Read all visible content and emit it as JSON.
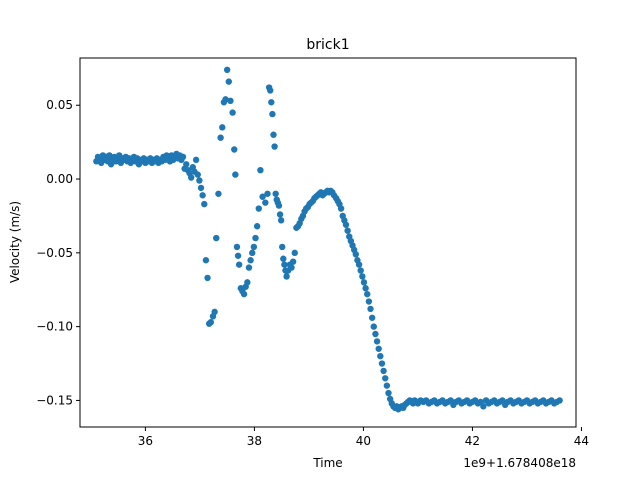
{
  "chart_data": {
    "type": "scatter",
    "title": "brick1",
    "xlabel": "Time",
    "ylabel": "Velocity (m/s)",
    "offset_text": "1e9+1.678408e18",
    "xlim": [
      34.8,
      43.9
    ],
    "ylim": [
      -0.168,
      0.082
    ],
    "xticks": [
      36,
      38,
      40,
      42,
      44
    ],
    "xtick_labels": [
      "36",
      "38",
      "40",
      "42",
      "44"
    ],
    "yticks": [
      0.05,
      0.0,
      -0.05,
      -0.1,
      -0.15
    ],
    "ytick_labels": [
      "0.05",
      "0.00",
      "−0.05",
      "−0.10",
      "−0.15"
    ],
    "grid": false,
    "legend": "none",
    "marker_color": "#1f77b4",
    "series": [
      {
        "points": [
          [
            35.1,
            0.012
          ],
          [
            35.13,
            0.015
          ],
          [
            35.16,
            0.014
          ],
          [
            35.19,
            0.011
          ],
          [
            35.22,
            0.016
          ],
          [
            35.25,
            0.013
          ],
          [
            35.28,
            0.015
          ],
          [
            35.31,
            0.012
          ],
          [
            35.34,
            0.016
          ],
          [
            35.37,
            0.01
          ],
          [
            35.4,
            0.014
          ],
          [
            35.43,
            0.015
          ],
          [
            35.46,
            0.012
          ],
          [
            35.49,
            0.013
          ],
          [
            35.52,
            0.016
          ],
          [
            35.55,
            0.011
          ],
          [
            35.58,
            0.014
          ],
          [
            35.61,
            0.013
          ],
          [
            35.64,
            0.015
          ],
          [
            35.67,
            0.012
          ],
          [
            35.7,
            0.014
          ],
          [
            35.73,
            0.011
          ],
          [
            35.76,
            0.013
          ],
          [
            35.79,
            0.015
          ],
          [
            35.82,
            0.012
          ],
          [
            35.85,
            0.014
          ],
          [
            35.88,
            0.01
          ],
          [
            35.91,
            0.013
          ],
          [
            35.94,
            0.012
          ],
          [
            35.97,
            0.014
          ],
          [
            36.0,
            0.011
          ],
          [
            36.03,
            0.013
          ],
          [
            36.06,
            0.012
          ],
          [
            36.09,
            0.014
          ],
          [
            36.12,
            0.011
          ],
          [
            36.15,
            0.013
          ],
          [
            36.18,
            0.012
          ],
          [
            36.21,
            0.014
          ],
          [
            36.24,
            0.011
          ],
          [
            36.27,
            0.013
          ],
          [
            36.3,
            0.012
          ],
          [
            36.33,
            0.015
          ],
          [
            36.36,
            0.013
          ],
          [
            36.39,
            0.016
          ],
          [
            36.42,
            0.014
          ],
          [
            36.45,
            0.012
          ],
          [
            36.48,
            0.016
          ],
          [
            36.51,
            0.013
          ],
          [
            36.54,
            0.015
          ],
          [
            36.57,
            0.017
          ],
          [
            36.6,
            0.014
          ],
          [
            36.63,
            0.016
          ],
          [
            36.66,
            0.013
          ],
          [
            36.69,
            0.015
          ],
          [
            36.72,
            0.007
          ],
          [
            36.75,
            0.01
          ],
          [
            36.78,
            0.006
          ],
          [
            36.81,
            0.004
          ],
          [
            36.84,
            0.001
          ],
          [
            36.87,
            0.008
          ],
          [
            36.9,
            0.005
          ],
          [
            36.93,
            0.013
          ],
          [
            36.96,
            0.003
          ],
          [
            36.99,
            -0.001
          ],
          [
            37.02,
            -0.006
          ],
          [
            37.05,
            -0.011
          ],
          [
            37.08,
            -0.017
          ],
          [
            37.11,
            -0.055
          ],
          [
            37.14,
            -0.067
          ],
          [
            37.17,
            -0.098
          ],
          [
            37.2,
            -0.097
          ],
          [
            37.24,
            -0.093
          ],
          [
            37.27,
            -0.09
          ],
          [
            37.3,
            -0.04
          ],
          [
            37.34,
            -0.01
          ],
          [
            37.38,
            0.028
          ],
          [
            37.41,
            0.035
          ],
          [
            37.44,
            0.052
          ],
          [
            37.47,
            0.054
          ],
          [
            37.5,
            0.074
          ],
          [
            37.53,
            0.066
          ],
          [
            37.56,
            0.053
          ],
          [
            37.6,
            0.045
          ],
          [
            37.63,
            0.02
          ],
          [
            37.65,
            0.003
          ],
          [
            37.68,
            -0.046
          ],
          [
            37.7,
            -0.052
          ],
          [
            37.72,
            -0.058
          ],
          [
            37.75,
            -0.074
          ],
          [
            37.78,
            -0.076
          ],
          [
            37.81,
            -0.078
          ],
          [
            37.84,
            -0.073
          ],
          [
            37.87,
            -0.07
          ],
          [
            37.9,
            -0.06
          ],
          [
            37.93,
            -0.055
          ],
          [
            37.96,
            -0.05
          ],
          [
            37.99,
            -0.046
          ],
          [
            38.02,
            -0.04
          ],
          [
            38.05,
            -0.032
          ],
          [
            38.08,
            -0.02
          ],
          [
            38.11,
            0.006
          ],
          [
            38.15,
            -0.012
          ],
          [
            38.2,
            -0.016
          ],
          [
            38.24,
            -0.01
          ],
          [
            38.27,
            0.062
          ],
          [
            38.29,
            0.06
          ],
          [
            38.31,
            0.052
          ],
          [
            38.33,
            0.044
          ],
          [
            38.35,
            0.03
          ],
          [
            38.37,
            0.022
          ],
          [
            38.39,
            -0.01
          ],
          [
            38.41,
            -0.014
          ],
          [
            38.43,
            -0.016
          ],
          [
            38.45,
            -0.018
          ],
          [
            38.47,
            -0.024
          ],
          [
            38.49,
            -0.028
          ],
          [
            38.51,
            -0.046
          ],
          [
            38.53,
            -0.054
          ],
          [
            38.55,
            -0.058
          ],
          [
            38.57,
            -0.062
          ],
          [
            38.59,
            -0.066
          ],
          [
            38.62,
            -0.062
          ],
          [
            38.65,
            -0.058
          ],
          [
            38.68,
            -0.06
          ],
          [
            38.71,
            -0.056
          ],
          [
            38.74,
            -0.05
          ],
          [
            38.77,
            -0.033
          ],
          [
            38.8,
            -0.032
          ],
          [
            38.83,
            -0.03
          ],
          [
            38.86,
            -0.027
          ],
          [
            38.89,
            -0.025
          ],
          [
            38.92,
            -0.022
          ],
          [
            38.95,
            -0.02
          ],
          [
            38.98,
            -0.019
          ],
          [
            39.01,
            -0.017
          ],
          [
            39.04,
            -0.016
          ],
          [
            39.07,
            -0.015
          ],
          [
            39.1,
            -0.013
          ],
          [
            39.13,
            -0.012
          ],
          [
            39.16,
            -0.011
          ],
          [
            39.19,
            -0.01
          ],
          [
            39.22,
            -0.009
          ],
          [
            39.25,
            -0.011
          ],
          [
            39.28,
            -0.01
          ],
          [
            39.31,
            -0.009
          ],
          [
            39.34,
            -0.008
          ],
          [
            39.37,
            -0.009
          ],
          [
            39.4,
            -0.008
          ],
          [
            39.43,
            -0.009
          ],
          [
            39.46,
            -0.011
          ],
          [
            39.5,
            -0.013
          ],
          [
            39.53,
            -0.015
          ],
          [
            39.56,
            -0.017
          ],
          [
            39.59,
            -0.02
          ],
          [
            39.62,
            -0.025
          ],
          [
            39.65,
            -0.028
          ],
          [
            39.68,
            -0.031
          ],
          [
            39.71,
            -0.035
          ],
          [
            39.74,
            -0.039
          ],
          [
            39.77,
            -0.042
          ],
          [
            39.8,
            -0.045
          ],
          [
            39.83,
            -0.048
          ],
          [
            39.86,
            -0.051
          ],
          [
            39.89,
            -0.055
          ],
          [
            39.92,
            -0.058
          ],
          [
            39.95,
            -0.062
          ],
          [
            39.98,
            -0.066
          ],
          [
            40.01,
            -0.07
          ],
          [
            40.04,
            -0.074
          ],
          [
            40.07,
            -0.078
          ],
          [
            40.1,
            -0.083
          ],
          [
            40.13,
            -0.088
          ],
          [
            40.16,
            -0.094
          ],
          [
            40.19,
            -0.1
          ],
          [
            40.22,
            -0.105
          ],
          [
            40.25,
            -0.11
          ],
          [
            40.28,
            -0.115
          ],
          [
            40.31,
            -0.12
          ],
          [
            40.34,
            -0.125
          ],
          [
            40.37,
            -0.13
          ],
          [
            40.4,
            -0.135
          ],
          [
            40.43,
            -0.14
          ],
          [
            40.46,
            -0.145
          ],
          [
            40.49,
            -0.149
          ],
          [
            40.52,
            -0.152
          ],
          [
            40.55,
            -0.154
          ],
          [
            40.58,
            -0.155
          ],
          [
            40.61,
            -0.154
          ],
          [
            40.64,
            -0.156
          ],
          [
            40.67,
            -0.155
          ],
          [
            40.7,
            -0.154
          ],
          [
            40.73,
            -0.155
          ],
          [
            40.76,
            -0.153
          ],
          [
            40.79,
            -0.152
          ],
          [
            40.82,
            -0.151
          ],
          [
            40.85,
            -0.15
          ],
          [
            40.88,
            -0.151
          ],
          [
            40.91,
            -0.152
          ],
          [
            40.94,
            -0.15
          ],
          [
            40.97,
            -0.151
          ],
          [
            41.0,
            -0.152
          ],
          [
            41.05,
            -0.15
          ],
          [
            41.1,
            -0.151
          ],
          [
            41.15,
            -0.15
          ],
          [
            41.2,
            -0.152
          ],
          [
            41.25,
            -0.151
          ],
          [
            41.3,
            -0.15
          ],
          [
            41.35,
            -0.152
          ],
          [
            41.4,
            -0.151
          ],
          [
            41.45,
            -0.15
          ],
          [
            41.5,
            -0.152
          ],
          [
            41.55,
            -0.151
          ],
          [
            41.6,
            -0.15
          ],
          [
            41.65,
            -0.153
          ],
          [
            41.7,
            -0.151
          ],
          [
            41.75,
            -0.15
          ],
          [
            41.8,
            -0.152
          ],
          [
            41.85,
            -0.151
          ],
          [
            41.9,
            -0.15
          ],
          [
            41.95,
            -0.152
          ],
          [
            42.0,
            -0.151
          ],
          [
            42.05,
            -0.15
          ],
          [
            42.1,
            -0.152
          ],
          [
            42.15,
            -0.151
          ],
          [
            42.2,
            -0.154
          ],
          [
            42.25,
            -0.15
          ],
          [
            42.3,
            -0.152
          ],
          [
            42.35,
            -0.151
          ],
          [
            42.4,
            -0.15
          ],
          [
            42.45,
            -0.152
          ],
          [
            42.5,
            -0.151
          ],
          [
            42.55,
            -0.15
          ],
          [
            42.6,
            -0.153
          ],
          [
            42.65,
            -0.151
          ],
          [
            42.7,
            -0.15
          ],
          [
            42.75,
            -0.152
          ],
          [
            42.8,
            -0.151
          ],
          [
            42.85,
            -0.15
          ],
          [
            42.9,
            -0.152
          ],
          [
            42.95,
            -0.151
          ],
          [
            43.0,
            -0.15
          ],
          [
            43.05,
            -0.152
          ],
          [
            43.1,
            -0.151
          ],
          [
            43.15,
            -0.15
          ],
          [
            43.2,
            -0.152
          ],
          [
            43.25,
            -0.151
          ],
          [
            43.3,
            -0.15
          ],
          [
            43.35,
            -0.152
          ],
          [
            43.4,
            -0.151
          ],
          [
            43.45,
            -0.15
          ],
          [
            43.5,
            -0.152
          ],
          [
            43.55,
            -0.151
          ],
          [
            43.6,
            -0.15
          ]
        ]
      }
    ]
  }
}
